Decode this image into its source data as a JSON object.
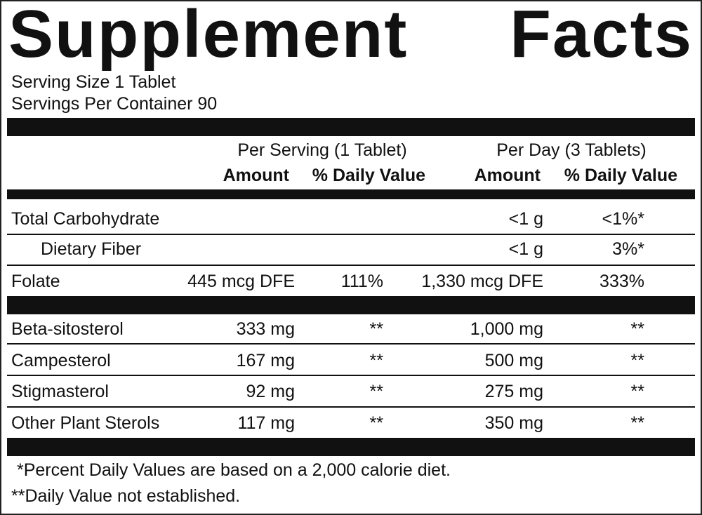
{
  "header": {
    "title": "Supplement Facts",
    "serving_size": "Serving Size 1 Tablet",
    "servings_per_container": "Servings Per Container 90"
  },
  "columns": {
    "per_serving": "Per Serving (1 Tablet)",
    "per_day": "Per Day (3 Tablets)",
    "amount_1": "Amount",
    "dv_1": "% Daily Value",
    "amount_2": "Amount",
    "dv_2": "% Daily Value"
  },
  "rows": [
    {
      "name": "Total Carbohydrate",
      "day_amount": "<1 g",
      "day_dv": "<1%*"
    },
    {
      "name": "Dietary Fiber",
      "day_amount": "<1 g",
      "day_dv": "3%*"
    },
    {
      "name": "Folate",
      "amount": "445 mcg DFE",
      "dv": "111%",
      "day_amount": "1,330 mcg DFE",
      "day_dv": "333%"
    },
    {
      "name": "Beta-sitosterol",
      "amount": "333 mg",
      "dv": "**",
      "day_amount": "1,000 mg",
      "day_dv": "**"
    },
    {
      "name": "Campesterol",
      "amount": "167 mg",
      "dv": "**",
      "day_amount": "500 mg",
      "day_dv": "**"
    },
    {
      "name": "Stigmasterol",
      "amount": "92 mg",
      "dv": "**",
      "day_amount": "275 mg",
      "day_dv": "**"
    },
    {
      "name": "Other Plant Sterols",
      "amount": "117 mg",
      "dv": "**",
      "day_amount": "350 mg",
      "day_dv": "**"
    }
  ],
  "footnotes": [
    "*Percent Daily Values are based on a 2,000 calorie diet.",
    "**Daily Value not established."
  ]
}
